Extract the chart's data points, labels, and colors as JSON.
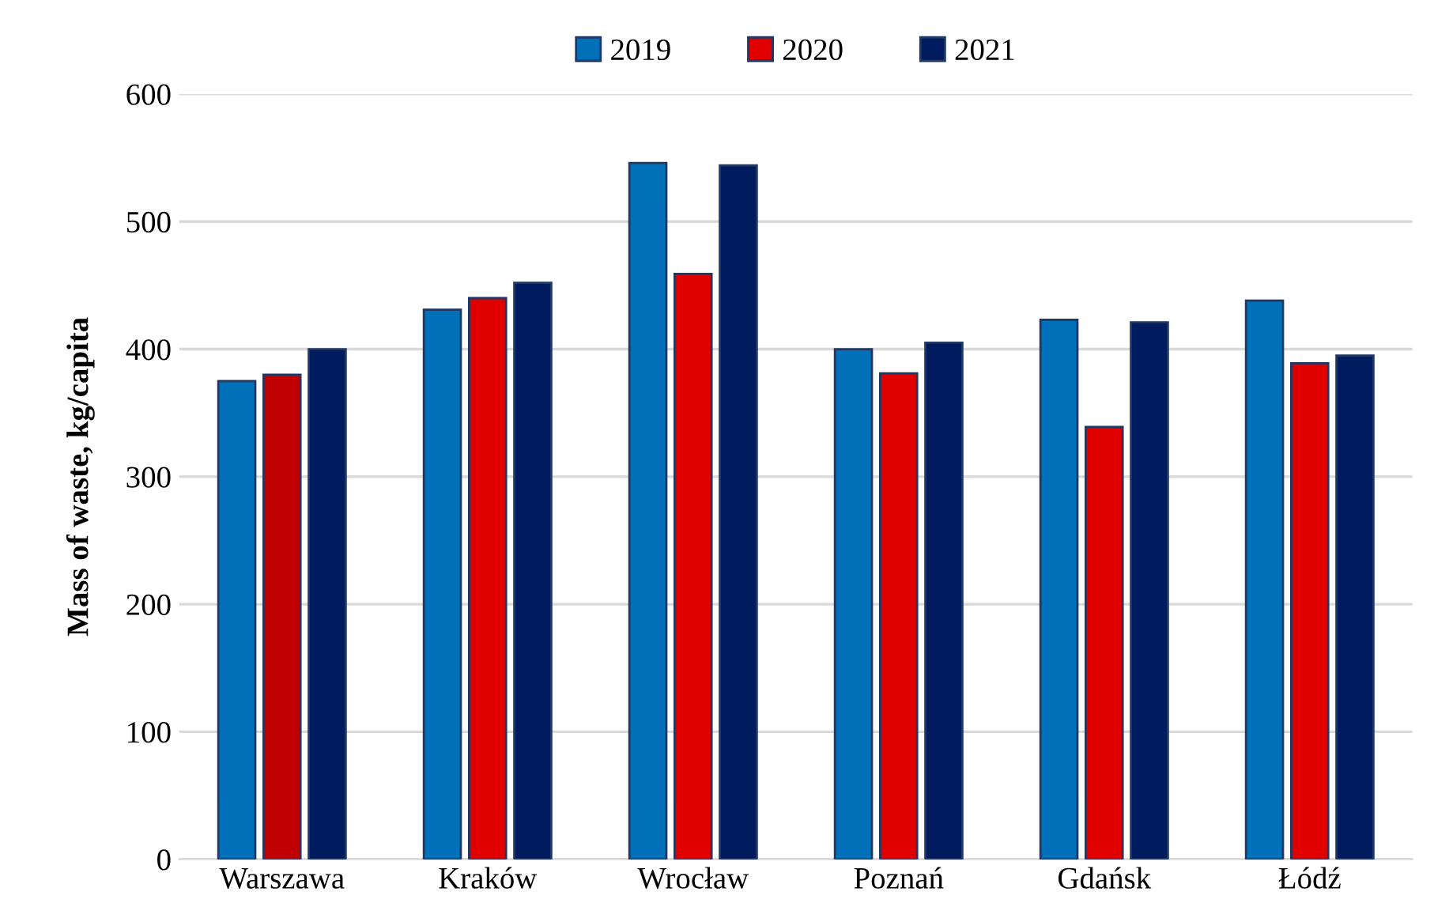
{
  "chart_data": {
    "type": "bar",
    "ylabel": "Mass of waste, kg/capita",
    "categories": [
      "Warszawa",
      "Kraków",
      "Wrocław",
      "Poznań",
      "Gdańsk",
      "Łódź"
    ],
    "series": [
      {
        "name": "2019",
        "color": "#0070b8",
        "values": [
          375,
          431,
          546,
          400,
          423,
          438
        ]
      },
      {
        "name": "2020",
        "color": "#e00000",
        "colors": [
          "#c00000",
          "#e00000",
          "#e00000",
          "#e00000",
          "#e00000",
          "#e00000"
        ],
        "values": [
          380,
          440,
          459,
          381,
          339,
          389
        ]
      },
      {
        "name": "2021",
        "color": "#001b5e",
        "values": [
          400,
          452,
          544,
          405,
          421,
          395
        ]
      }
    ],
    "ylim": [
      0,
      600
    ],
    "yticks": [
      0,
      100,
      200,
      300,
      400,
      500,
      600
    ],
    "grid": "y",
    "legend": "top"
  }
}
